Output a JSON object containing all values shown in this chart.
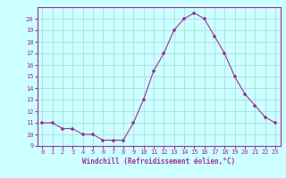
{
  "x": [
    0,
    1,
    2,
    3,
    4,
    5,
    6,
    7,
    8,
    9,
    10,
    11,
    12,
    13,
    14,
    15,
    16,
    17,
    18,
    19,
    20,
    21,
    22,
    23
  ],
  "y": [
    11,
    11,
    10.5,
    10.5,
    10,
    10,
    9.5,
    9.5,
    9.5,
    11,
    13,
    15.5,
    17,
    19,
    20,
    20.5,
    20,
    18.5,
    17,
    15,
    13.5,
    12.5,
    11.5,
    11
  ],
  "line_color": "#993399",
  "marker": "+",
  "bg_color": "#ccffff",
  "grid_color": "#aadddd",
  "xlabel": "Windchill (Refroidissement éolien,°C)",
  "xlabel_color": "#993399",
  "tick_color": "#993399",
  "ylim": [
    9,
    21
  ],
  "xlim": [
    -0.5,
    23.5
  ],
  "yticks": [
    9,
    10,
    11,
    12,
    13,
    14,
    15,
    16,
    17,
    18,
    19,
    20
  ],
  "xticks": [
    0,
    1,
    2,
    3,
    4,
    5,
    6,
    7,
    8,
    9,
    10,
    11,
    12,
    13,
    14,
    15,
    16,
    17,
    18,
    19,
    20,
    21,
    22,
    23
  ],
  "figsize": [
    3.2,
    2.0
  ],
  "dpi": 100
}
